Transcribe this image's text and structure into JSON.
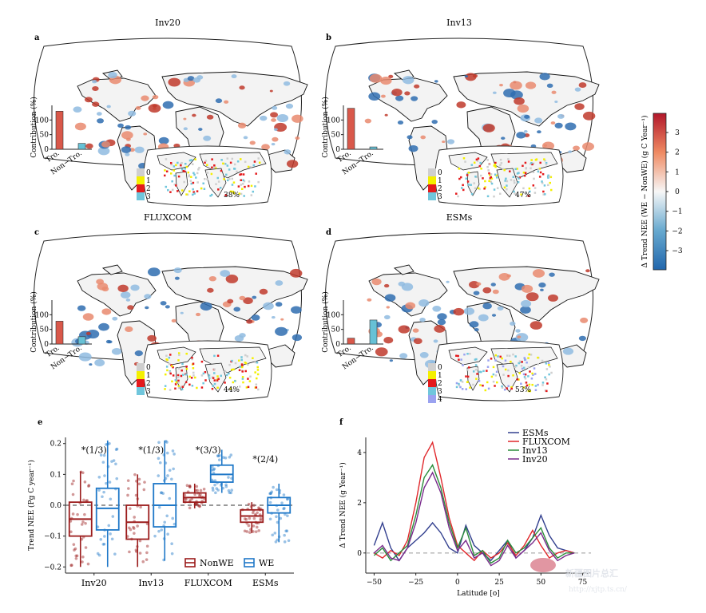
{
  "panels": [
    {
      "letter": "a",
      "title": "Inv20",
      "percent": "38%",
      "bars": [
        {
          "label": "Tro.",
          "value": 130,
          "color": "#d9584a"
        },
        {
          "label": "Non−Tro.",
          "value": 20,
          "color": "#67c1d6"
        }
      ],
      "legend": [
        "0",
        "1",
        "2",
        "3"
      ]
    },
    {
      "letter": "b",
      "title": "Inv13",
      "percent": "47%",
      "bars": [
        {
          "label": "Tro.",
          "value": 140,
          "color": "#d9584a"
        },
        {
          "label": "Non−Tro.",
          "value": 8,
          "color": "#67c1d6"
        }
      ],
      "legend": [
        "0",
        "1",
        "2",
        "3"
      ]
    },
    {
      "letter": "c",
      "title": "FLUXCOM",
      "percent": "44%",
      "bars": [
        {
          "label": "Tro.",
          "value": 78,
          "color": "#d9584a"
        },
        {
          "label": "Non−Tro.",
          "value": 25,
          "color": "#67c1d6"
        }
      ],
      "legend": [
        "0",
        "1",
        "2",
        "3"
      ]
    },
    {
      "letter": "d",
      "title": "ESMs",
      "percent": "53%",
      "bars": [
        {
          "label": "Tro.",
          "value": 20,
          "color": "#d9584a"
        },
        {
          "label": "Non−Tro.",
          "value": 82,
          "color": "#67c1d6"
        }
      ],
      "legend": [
        "0",
        "1",
        "2",
        "3",
        "4"
      ]
    }
  ],
  "bar_axis": {
    "ylabel": "Contribution (%)",
    "ticks": [
      "0",
      "50",
      "100"
    ]
  },
  "legend_colors": [
    "#cfcfcf",
    "#f4f000",
    "#e41a1c",
    "#70c6dc",
    "#9aa2f0"
  ],
  "colorbar": {
    "label": "Δ Trend NEE (WE − NonWE) (g C Year⁻¹)",
    "ticks": [
      "3",
      "2",
      "1",
      "0",
      "−1",
      "−2",
      "−3"
    ],
    "top_color": "#b2182b",
    "bottom_color": "#2166ac"
  },
  "chart_data": [
    {
      "type": "box",
      "panel": "e",
      "ylabel": "Trend NEE (Pg C year⁻¹)",
      "categories": [
        "Inv20",
        "Inv13",
        "FLUXCOM",
        "ESMs"
      ],
      "ylim": [
        -0.22,
        0.22
      ],
      "yticks": [
        "0.2",
        "0.1",
        "0.0",
        "−0.1",
        "−0.2"
      ],
      "annotations": [
        "*(1/3)",
        "*(1/3)",
        "*(3/3)",
        "*(2/4)"
      ],
      "series": [
        {
          "name": "NonWE",
          "color": "#9b1c1c",
          "boxes": [
            {
              "q1": -0.1,
              "median": -0.045,
              "q3": 0.01,
              "low": -0.2,
              "high": 0.11
            },
            {
              "q1": -0.11,
              "median": -0.055,
              "q3": 0.0,
              "low": -0.2,
              "high": 0.1
            },
            {
              "q1": 0.01,
              "median": 0.025,
              "q3": 0.04,
              "low": -0.01,
              "high": 0.07
            },
            {
              "q1": -0.055,
              "median": -0.035,
              "q3": -0.015,
              "low": -0.09,
              "high": 0.01
            }
          ]
        },
        {
          "name": "WE",
          "color": "#1f78c8",
          "boxes": [
            {
              "q1": -0.08,
              "median": -0.01,
              "q3": 0.055,
              "low": -0.2,
              "high": 0.21
            },
            {
              "q1": -0.07,
              "median": 0.0,
              "q3": 0.07,
              "low": -0.18,
              "high": 0.21
            },
            {
              "q1": 0.075,
              "median": 0.1,
              "q3": 0.13,
              "low": 0.04,
              "high": 0.18
            },
            {
              "q1": -0.025,
              "median": 0.0,
              "q3": 0.025,
              "low": -0.12,
              "high": 0.07
            }
          ]
        }
      ],
      "legend": [
        "NonWE",
        "WE"
      ]
    },
    {
      "type": "line",
      "panel": "f",
      "xlabel": "Latitude [o]",
      "ylabel": "Δ Trend NEE (g Year⁻¹)",
      "xlim": [
        -55,
        80
      ],
      "ylim": [
        -0.8,
        4.6
      ],
      "xticks": [
        "−50",
        "−25",
        "0",
        "25",
        "50",
        "75"
      ],
      "yticks": [
        "0",
        "2",
        "4"
      ],
      "x": [
        -50,
        -45,
        -40,
        -35,
        -30,
        -25,
        -20,
        -15,
        -10,
        -5,
        0,
        5,
        10,
        15,
        20,
        25,
        30,
        35,
        40,
        45,
        50,
        55,
        60,
        65,
        70
      ],
      "series": [
        {
          "name": "ESMs",
          "color": "#33408f",
          "values": [
            0.3,
            1.2,
            0.2,
            -0.3,
            0.2,
            0.5,
            0.8,
            1.2,
            0.8,
            0.2,
            0.0,
            1.1,
            0.3,
            0.0,
            -0.3,
            0.1,
            0.5,
            -0.2,
            0.1,
            0.6,
            1.5,
            0.7,
            0.2,
            0.1,
            0.0
          ]
        },
        {
          "name": "FLUXCOM",
          "color": "#e0272b",
          "values": [
            0.0,
            -0.2,
            0.1,
            -0.1,
            0.5,
            2.0,
            3.8,
            4.4,
            3.0,
            1.4,
            0.3,
            0.0,
            -0.3,
            0.1,
            -0.2,
            0.0,
            0.4,
            -0.1,
            0.3,
            0.9,
            0.3,
            -0.2,
            0.0,
            0.1,
            0.0
          ]
        },
        {
          "name": "Inv13",
          "color": "#2a8c3a",
          "values": [
            -0.1,
            0.2,
            -0.3,
            0.0,
            0.3,
            1.5,
            3.0,
            3.5,
            2.6,
            1.2,
            0.2,
            1.0,
            -0.1,
            0.1,
            -0.4,
            -0.2,
            0.5,
            0.0,
            0.2,
            0.6,
            1.0,
            0.2,
            -0.2,
            0.0,
            0.0
          ]
        },
        {
          "name": "Inv20",
          "color": "#7a2a8c",
          "values": [
            0.0,
            0.3,
            -0.2,
            -0.3,
            0.2,
            1.2,
            2.6,
            3.2,
            2.4,
            1.0,
            0.1,
            0.5,
            -0.2,
            0.0,
            -0.5,
            -0.3,
            0.3,
            -0.2,
            0.1,
            0.4,
            0.8,
            0.1,
            -0.3,
            -0.1,
            0.0
          ]
        }
      ]
    }
  ],
  "watermark": {
    "text_cn": "新疆图片总汇",
    "url": "http://xjtp.ts.cn/"
  }
}
